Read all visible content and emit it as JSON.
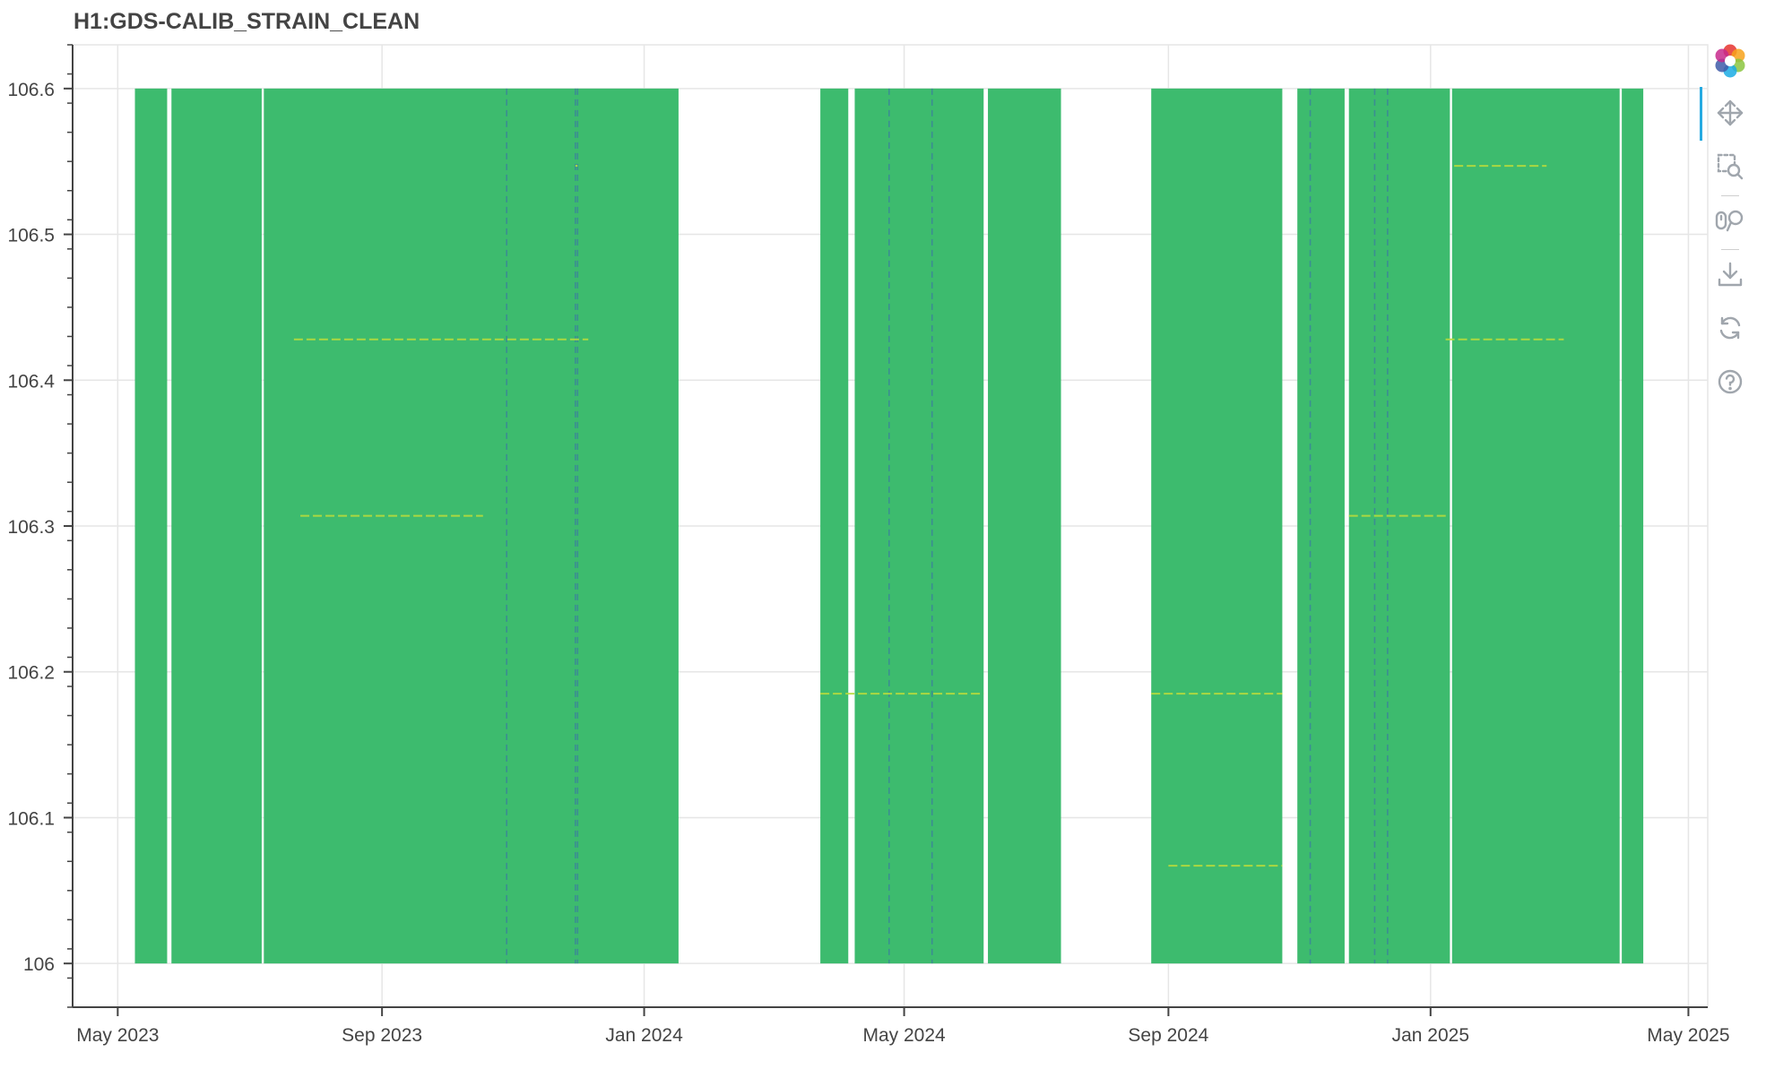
{
  "title": "H1:GDS-CALIB_STRAIN_CLEAN",
  "colors": {
    "fill": "#3dbb6e",
    "fill_light": "#5cc76d",
    "line_blue": "#3a68b0",
    "line_yellow": "#b8dc3c",
    "grid": "#e6e6e6",
    "axis": "#444444",
    "accent": "#26aae1",
    "tool_icon": "#a0a6ad"
  },
  "toolbar": {
    "active_tool": "pan",
    "tools": [
      {
        "name": "bokeh-logo",
        "icon": "bokeh-logo-icon",
        "interactable": false
      },
      {
        "name": "pan",
        "icon": "pan-icon",
        "interactable": true
      },
      {
        "name": "box-zoom",
        "icon": "box-zoom-icon",
        "interactable": true
      },
      {
        "name": "wheel-zoom",
        "icon": "wheel-zoom-icon",
        "interactable": true
      },
      {
        "name": "save",
        "icon": "save-icon",
        "interactable": true
      },
      {
        "name": "reset",
        "icon": "reset-icon",
        "interactable": true
      },
      {
        "name": "help",
        "icon": "help-icon",
        "interactable": true
      }
    ]
  },
  "chart_data": {
    "type": "heatmap",
    "title": "H1:GDS-CALIB_STRAIN_CLEAN",
    "xlabel": "",
    "ylabel": "",
    "x_axis": "date",
    "xlim": [
      "2023-04-10",
      "2025-05-10"
    ],
    "ylim": [
      105.97,
      106.63
    ],
    "x_ticks": [
      {
        "date": "2023-05-01",
        "label": "May 2023"
      },
      {
        "date": "2023-09-01",
        "label": "Sep 2023"
      },
      {
        "date": "2024-01-01",
        "label": "Jan 2024"
      },
      {
        "date": "2024-05-01",
        "label": "May 2024"
      },
      {
        "date": "2024-09-01",
        "label": "Sep 2024"
      },
      {
        "date": "2025-01-01",
        "label": "Jan 2025"
      },
      {
        "date": "2025-05-01",
        "label": "May 2025"
      }
    ],
    "y_ticks": [
      106,
      106.1,
      106.2,
      106.3,
      106.4,
      106.5,
      106.6
    ],
    "y_tick_labels": [
      "106",
      "106.1",
      "106.2",
      "106.3",
      "106.4",
      "106.5",
      "106.6"
    ],
    "y_range_data": [
      106.0,
      106.6
    ],
    "grid": true,
    "colormap": "viridis",
    "data_segments": [
      {
        "start": "2023-05-09",
        "end": "2023-05-24"
      },
      {
        "start": "2023-05-26",
        "end": "2023-07-07"
      },
      {
        "start": "2023-07-08",
        "end": "2024-01-17"
      },
      {
        "start": "2024-03-23",
        "end": "2024-04-05"
      },
      {
        "start": "2024-04-08",
        "end": "2024-06-07"
      },
      {
        "start": "2024-06-09",
        "end": "2024-07-13"
      },
      {
        "start": "2024-08-24",
        "end": "2024-10-24"
      },
      {
        "start": "2024-10-31",
        "end": "2024-11-22"
      },
      {
        "start": "2024-11-24",
        "end": "2025-01-10"
      },
      {
        "start": "2025-01-11",
        "end": "2025-03-30"
      },
      {
        "start": "2025-03-31",
        "end": "2025-04-10"
      }
    ],
    "vertical_lines": [
      {
        "date": "2023-10-29",
        "color": "blue"
      },
      {
        "date": "2023-11-30",
        "color": "blue"
      },
      {
        "date": "2023-12-01",
        "color": "blue"
      },
      {
        "date": "2024-04-24",
        "color": "blue"
      },
      {
        "date": "2024-05-14",
        "color": "blue"
      },
      {
        "date": "2024-11-06",
        "color": "blue"
      },
      {
        "date": "2024-12-06",
        "color": "blue"
      },
      {
        "date": "2024-12-12",
        "color": "blue"
      }
    ],
    "horizontal_lines": [
      {
        "y": 106.547,
        "start": "2023-11-30",
        "end": "2023-12-01"
      },
      {
        "y": 106.547,
        "start": "2025-01-12",
        "end": "2025-02-24"
      },
      {
        "y": 106.428,
        "start": "2023-07-22",
        "end": "2023-12-06"
      },
      {
        "y": 106.428,
        "start": "2025-01-08",
        "end": "2025-03-04"
      },
      {
        "y": 106.307,
        "start": "2023-07-25",
        "end": "2023-10-18"
      },
      {
        "y": 106.307,
        "start": "2024-11-24",
        "end": "2025-01-09"
      },
      {
        "y": 106.185,
        "start": "2024-03-23",
        "end": "2024-06-07"
      },
      {
        "y": 106.185,
        "start": "2024-08-24",
        "end": "2024-10-24"
      },
      {
        "y": 106.067,
        "start": "2024-09-01",
        "end": "2024-10-24"
      }
    ]
  }
}
